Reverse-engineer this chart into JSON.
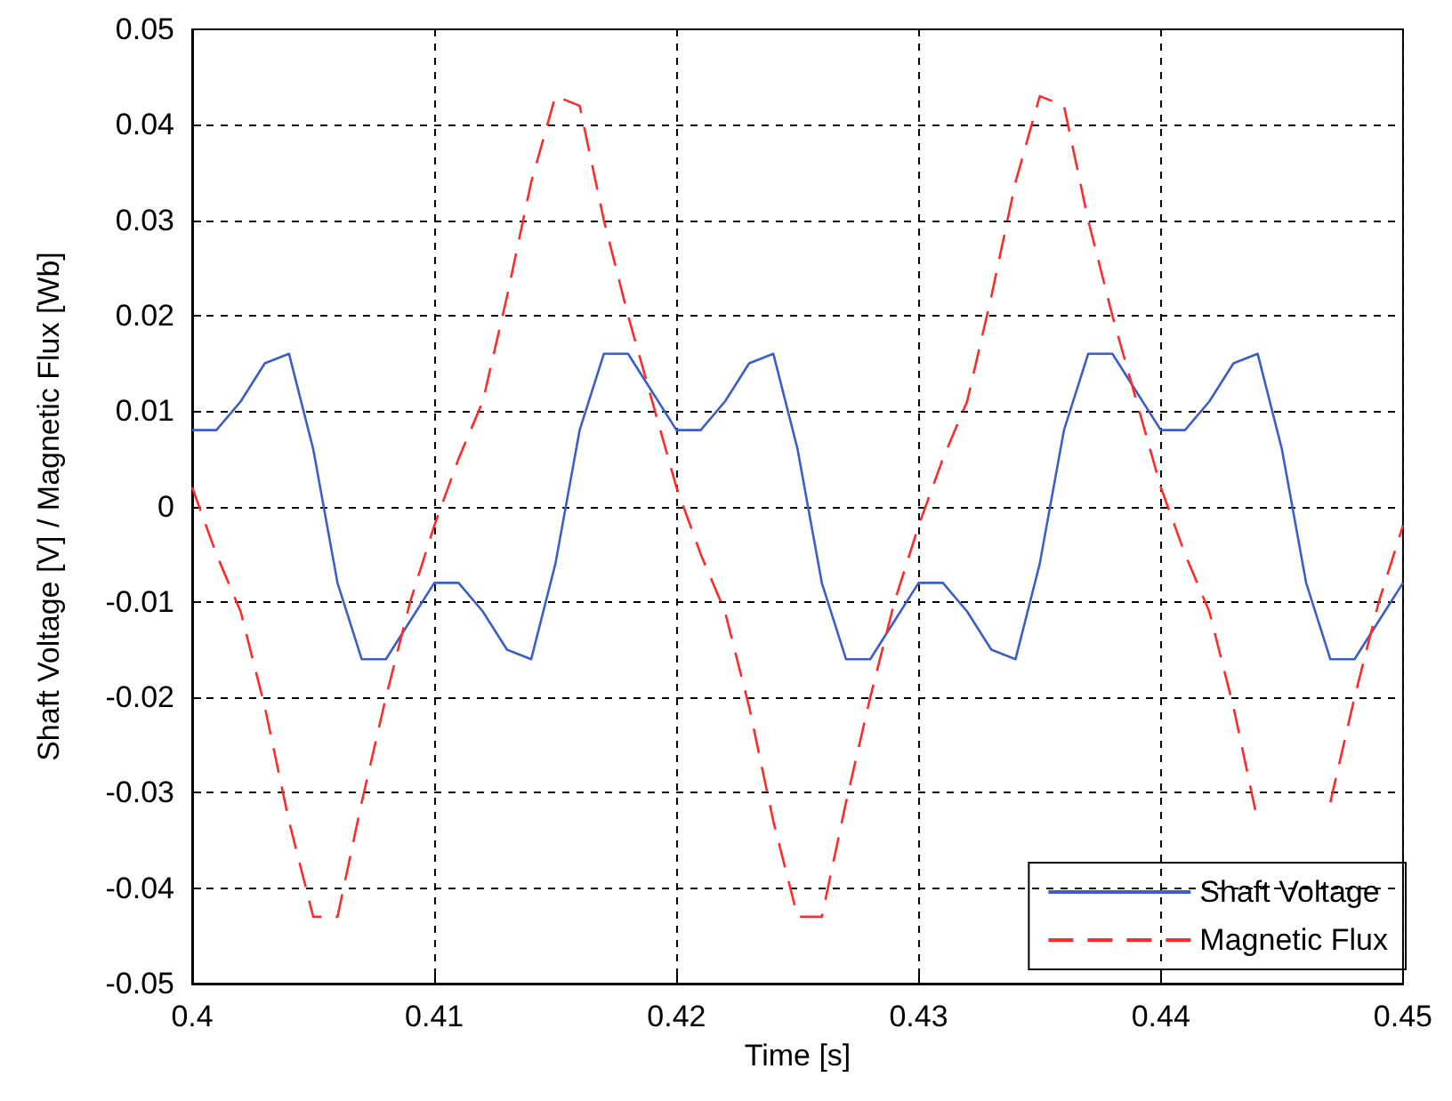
{
  "chart_data": {
    "type": "line",
    "xlabel": "Time [s]",
    "ylabel": "Shaft Voltage [V] / Magnetic Flux [Wb]",
    "x": [
      0.4,
      0.401,
      0.402,
      0.403,
      0.404,
      0.405,
      0.406,
      0.407,
      0.408,
      0.409,
      0.41,
      0.411,
      0.412,
      0.413,
      0.414,
      0.415,
      0.416,
      0.417,
      0.418,
      0.419,
      0.42,
      0.421,
      0.422,
      0.423,
      0.424,
      0.425,
      0.426,
      0.427,
      0.428,
      0.429,
      0.43,
      0.431,
      0.432,
      0.433,
      0.434,
      0.435,
      0.436,
      0.437,
      0.438,
      0.439,
      0.44,
      0.441,
      0.442,
      0.443,
      0.444,
      0.445,
      0.446,
      0.447,
      0.448,
      0.449,
      0.45
    ],
    "series": [
      {
        "name": "Shaft Voltage",
        "color": "#3b5fc6",
        "line_style": "solid",
        "values": [
          0.008,
          0.008,
          0.011,
          0.015,
          0.016,
          0.006,
          -0.008,
          -0.016,
          -0.016,
          -0.012,
          -0.008,
          -0.008,
          -0.011,
          -0.015,
          -0.016,
          -0.006,
          0.008,
          0.016,
          0.016,
          0.012,
          0.008,
          0.008,
          0.011,
          0.015,
          0.016,
          0.006,
          -0.008,
          -0.016,
          -0.016,
          -0.012,
          -0.008,
          -0.008,
          -0.011,
          -0.015,
          -0.016,
          -0.006,
          0.008,
          0.016,
          0.016,
          0.012,
          0.008,
          0.008,
          0.011,
          0.015,
          0.016,
          0.006,
          -0.008,
          -0.016,
          -0.016,
          -0.012,
          -0.008
        ]
      },
      {
        "name": "Magnetic Flux",
        "color": "#ff2a2a",
        "line_style": "dashed",
        "values": [
          0.002,
          -0.005,
          -0.011,
          -0.021,
          -0.033,
          -0.043,
          -0.043,
          -0.031,
          -0.02,
          -0.01,
          -0.002,
          0.005,
          0.011,
          0.022,
          0.034,
          0.043,
          0.042,
          0.03,
          0.02,
          0.011,
          0.002,
          -0.005,
          -0.011,
          -0.021,
          -0.033,
          -0.043,
          -0.043,
          -0.031,
          -0.02,
          -0.01,
          -0.002,
          0.005,
          0.011,
          0.022,
          0.034,
          0.043,
          0.042,
          0.03,
          0.02,
          0.011,
          0.002,
          -0.005,
          -0.011,
          -0.021,
          -0.033,
          null,
          null,
          -0.031,
          -0.02,
          -0.01,
          -0.002
        ]
      }
    ],
    "xlim": [
      0.4,
      0.45
    ],
    "xticks": [
      0.4,
      0.41,
      0.42,
      0.43,
      0.44,
      0.45
    ],
    "ylim": [
      -0.05,
      0.05
    ],
    "yticks": [
      -0.05,
      -0.04,
      -0.03,
      -0.02,
      -0.01,
      0,
      0.01,
      0.02,
      0.03,
      0.04,
      0.05
    ],
    "grid": true,
    "legend": "bottom right",
    "marker": "none"
  }
}
